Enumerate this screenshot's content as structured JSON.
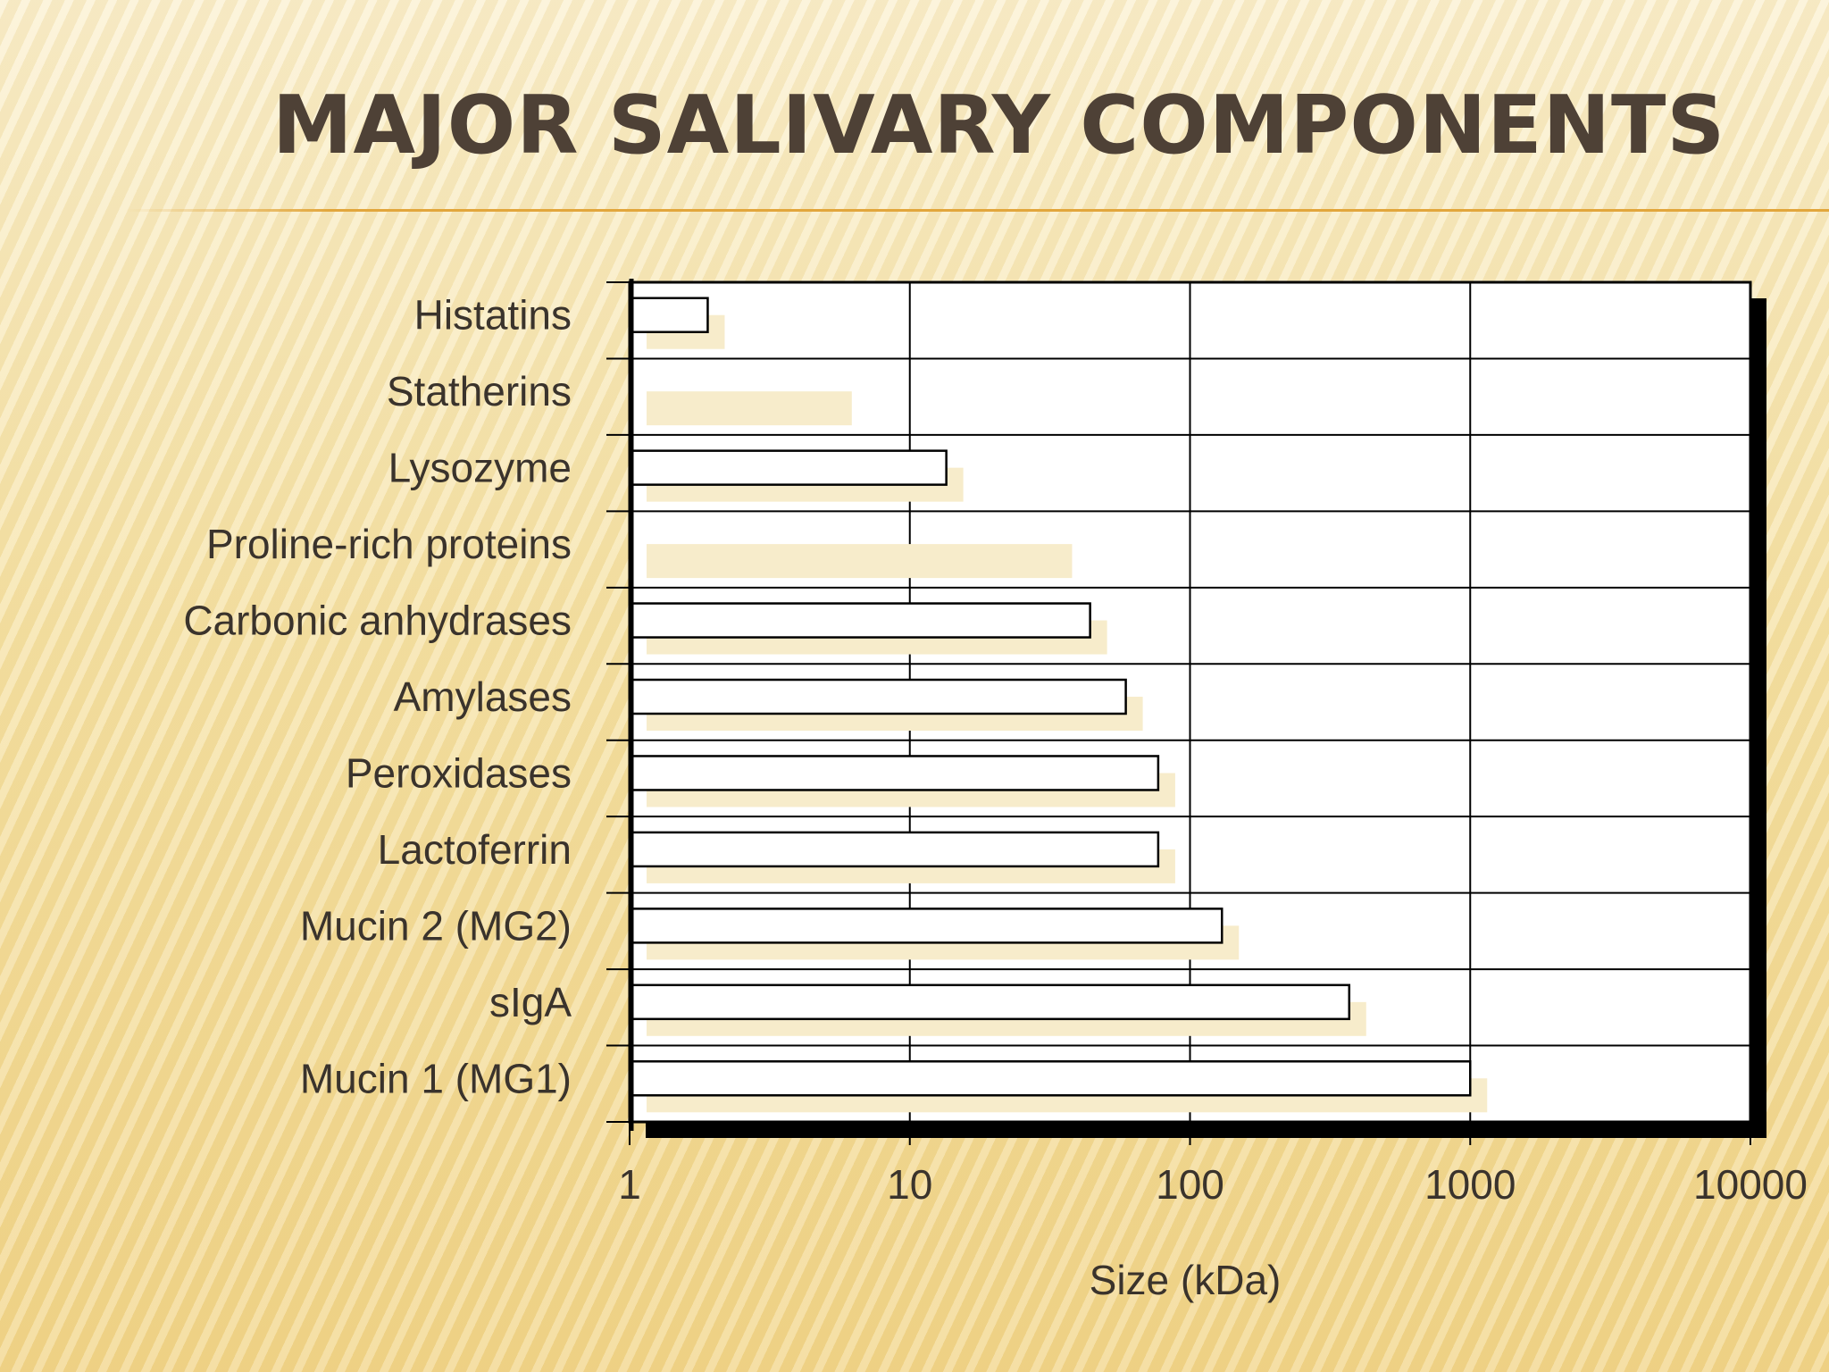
{
  "slide": {
    "title": "MAJOR SALIVARY COMPONENTS"
  },
  "chart_data": {
    "type": "bar",
    "orientation": "horizontal",
    "x_scale": "log",
    "xlim": [
      1,
      10000
    ],
    "xticks": [
      "1",
      "10",
      "100",
      "1000",
      "10000"
    ],
    "xlabel": "Size (kDa)",
    "ylabel": "",
    "grid": true,
    "categories": [
      "Histatins",
      "Statherins",
      "Lysozyme",
      "Proline-rich proteins",
      "Carbonic anhydrases",
      "Amylases",
      "Peroxidases",
      "Lactoferrin",
      "Mucin 2 (MG2)",
      "sIgA",
      "Mucin 1 (MG1)"
    ],
    "values": [
      1.9,
      5.4,
      13.5,
      33,
      44,
      59,
      77,
      77,
      130,
      370,
      1000
    ],
    "colors": {
      "bar_fill": "#ffffff",
      "bar_stroke": "#000000",
      "bar_shadow": "#f7eccb",
      "plot_bg": "#ffffff",
      "plot_shadow": "#000000"
    }
  }
}
